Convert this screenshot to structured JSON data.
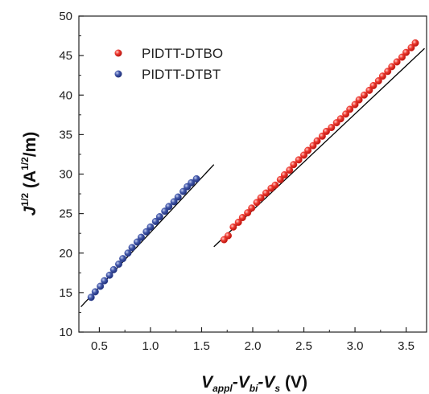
{
  "chart_data": {
    "type": "scatter",
    "xlabel": {
      "base": "V",
      "sub1": "appl",
      "sep1": "-V",
      "sub2": "bi",
      "sep2": "-V",
      "sub3": "s",
      "unit": " (V)"
    },
    "ylabel": {
      "base": "J",
      "sup1": "1/2",
      "mid": " (A",
      "sup2": "1/2",
      "unit": "/m)"
    },
    "xlim": [
      0.3,
      3.7
    ],
    "ylim": [
      10,
      50
    ],
    "x_ticks": [
      "0.5",
      "1.0",
      "1.5",
      "2.0",
      "2.5",
      "3.0",
      "3.5"
    ],
    "x_tick_values": [
      0.5,
      1.0,
      1.5,
      2.0,
      2.5,
      3.0,
      3.5
    ],
    "y_ticks": [
      "10",
      "15",
      "20",
      "25",
      "30",
      "35",
      "40",
      "45",
      "50"
    ],
    "y_tick_values": [
      10,
      15,
      20,
      25,
      30,
      35,
      40,
      45,
      50
    ],
    "grid": false,
    "legend_position": "top-left",
    "series": [
      {
        "name": "PIDTT-DTBO",
        "color": "#e8322b",
        "x": [
          1.72,
          1.76,
          1.81,
          1.86,
          1.9,
          1.95,
          1.99,
          2.04,
          2.08,
          2.13,
          2.18,
          2.22,
          2.27,
          2.31,
          2.36,
          2.4,
          2.45,
          2.5,
          2.54,
          2.59,
          2.63,
          2.68,
          2.72,
          2.77,
          2.82,
          2.86,
          2.91,
          2.95,
          3.0,
          3.04,
          3.09,
          3.14,
          3.18,
          3.23,
          3.27,
          3.32,
          3.36,
          3.41,
          3.46,
          3.5,
          3.55,
          3.59
        ],
        "y": [
          21.7,
          22.2,
          23.3,
          23.9,
          24.5,
          25.1,
          25.7,
          26.4,
          27.0,
          27.6,
          28.2,
          28.6,
          29.3,
          29.9,
          30.5,
          31.2,
          31.8,
          32.4,
          33.0,
          33.6,
          34.2,
          34.8,
          35.4,
          35.9,
          36.5,
          37.0,
          37.6,
          38.2,
          38.8,
          39.4,
          40.0,
          40.6,
          41.2,
          41.8,
          42.4,
          43.0,
          43.6,
          44.2,
          44.8,
          45.4,
          46.0,
          46.6
        ]
      },
      {
        "name": "PIDTT-DTBT",
        "color": "#3b4fa2",
        "x": [
          0.42,
          0.46,
          0.51,
          0.55,
          0.6,
          0.64,
          0.69,
          0.73,
          0.78,
          0.82,
          0.87,
          0.91,
          0.96,
          1.0,
          1.05,
          1.09,
          1.14,
          1.18,
          1.23,
          1.27,
          1.32,
          1.36,
          1.4,
          1.45
        ],
        "y": [
          14.4,
          15.1,
          15.8,
          16.5,
          17.2,
          17.9,
          18.6,
          19.3,
          20.0,
          20.7,
          21.4,
          22.0,
          22.7,
          23.3,
          24.0,
          24.6,
          25.3,
          25.9,
          26.5,
          27.1,
          27.8,
          28.4,
          28.9,
          29.4
        ]
      }
    ],
    "fit_lines": [
      {
        "x": [
          1.62,
          3.68
        ],
        "y": [
          20.8,
          45.9
        ],
        "color": "#000000"
      },
      {
        "x": [
          0.32,
          1.62
        ],
        "y": [
          13.2,
          31.2
        ],
        "color": "#000000"
      }
    ]
  }
}
